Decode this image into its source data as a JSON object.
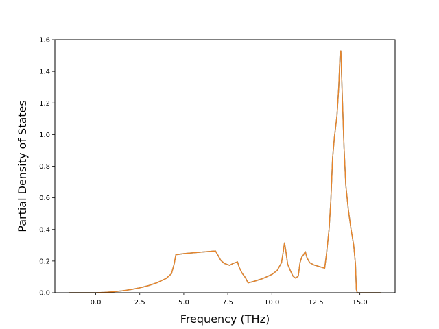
{
  "chart_data": {
    "type": "line",
    "title": "",
    "xlabel": "Frequency (THz)",
    "ylabel": "Partial Density of States",
    "xlim": [
      -2.32,
      17.0
    ],
    "ylim": [
      0,
      1.6
    ],
    "xticks": [
      0.0,
      2.5,
      5.0,
      7.5,
      10.0,
      12.5,
      15.0
    ],
    "xtick_labels": [
      "0.0",
      "2.5",
      "5.0",
      "7.5",
      "10.0",
      "12.5",
      "15.0"
    ],
    "yticks": [
      0.0,
      0.2,
      0.4,
      0.6,
      0.8,
      1.0,
      1.2,
      1.4,
      1.6
    ],
    "ytick_labels": [
      "0.0",
      "0.2",
      "0.4",
      "0.6",
      "0.8",
      "1.0",
      "1.2",
      "1.4",
      "1.6"
    ],
    "grid": false,
    "legend": "none",
    "series": [
      {
        "color": "#1f77b4",
        "points": [
          [
            -1.5,
            0
          ],
          [
            0,
            0
          ],
          [
            0.5,
            0.002
          ],
          [
            1,
            0.006
          ],
          [
            1.5,
            0.012
          ],
          [
            2,
            0.02
          ],
          [
            2.5,
            0.031
          ],
          [
            3,
            0.045
          ],
          [
            3.5,
            0.064
          ],
          [
            4,
            0.09
          ],
          [
            4.3,
            0.12
          ],
          [
            4.45,
            0.18
          ],
          [
            4.55,
            0.24
          ],
          [
            5,
            0.247
          ],
          [
            5.5,
            0.252
          ],
          [
            6,
            0.257
          ],
          [
            6.5,
            0.261
          ],
          [
            6.8,
            0.264
          ],
          [
            6.95,
            0.235
          ],
          [
            7.1,
            0.205
          ],
          [
            7.3,
            0.185
          ],
          [
            7.6,
            0.173
          ],
          [
            7.8,
            0.185
          ],
          [
            8.05,
            0.195
          ],
          [
            8.15,
            0.16
          ],
          [
            8.3,
            0.125
          ],
          [
            8.5,
            0.095
          ],
          [
            8.65,
            0.062
          ],
          [
            9,
            0.072
          ],
          [
            9.5,
            0.09
          ],
          [
            10,
            0.115
          ],
          [
            10.3,
            0.14
          ],
          [
            10.55,
            0.19
          ],
          [
            10.65,
            0.26
          ],
          [
            10.72,
            0.315
          ],
          [
            10.8,
            0.26
          ],
          [
            10.9,
            0.18
          ],
          [
            11.05,
            0.14
          ],
          [
            11.2,
            0.105
          ],
          [
            11.35,
            0.092
          ],
          [
            11.5,
            0.105
          ],
          [
            11.6,
            0.19
          ],
          [
            11.7,
            0.225
          ],
          [
            11.8,
            0.24
          ],
          [
            11.9,
            0.26
          ],
          [
            12.0,
            0.22
          ],
          [
            12.15,
            0.19
          ],
          [
            12.4,
            0.175
          ],
          [
            12.7,
            0.165
          ],
          [
            13.0,
            0.155
          ],
          [
            13.1,
            0.24
          ],
          [
            13.25,
            0.4
          ],
          [
            13.35,
            0.58
          ],
          [
            13.45,
            0.85
          ],
          [
            13.55,
            0.98
          ],
          [
            13.7,
            1.12
          ],
          [
            13.8,
            1.3
          ],
          [
            13.88,
            1.52
          ],
          [
            13.92,
            1.53
          ],
          [
            14.0,
            1.25
          ],
          [
            14.1,
            0.92
          ],
          [
            14.2,
            0.68
          ],
          [
            14.35,
            0.52
          ],
          [
            14.5,
            0.4
          ],
          [
            14.65,
            0.3
          ],
          [
            14.75,
            0.18
          ],
          [
            14.8,
            0.02
          ],
          [
            14.85,
            0
          ],
          [
            15.5,
            0
          ],
          [
            16.2,
            0
          ]
        ]
      },
      {
        "color": "#e8852a",
        "points": [
          [
            -1.5,
            0
          ],
          [
            0,
            0
          ],
          [
            0.5,
            0.002
          ],
          [
            1,
            0.006
          ],
          [
            1.5,
            0.012
          ],
          [
            2,
            0.02
          ],
          [
            2.5,
            0.031
          ],
          [
            3,
            0.045
          ],
          [
            3.5,
            0.064
          ],
          [
            4,
            0.09
          ],
          [
            4.3,
            0.12
          ],
          [
            4.45,
            0.18
          ],
          [
            4.55,
            0.24
          ],
          [
            5,
            0.247
          ],
          [
            5.5,
            0.252
          ],
          [
            6,
            0.257
          ],
          [
            6.5,
            0.261
          ],
          [
            6.8,
            0.264
          ],
          [
            6.95,
            0.235
          ],
          [
            7.1,
            0.205
          ],
          [
            7.3,
            0.185
          ],
          [
            7.6,
            0.173
          ],
          [
            7.8,
            0.185
          ],
          [
            8.05,
            0.195
          ],
          [
            8.15,
            0.16
          ],
          [
            8.3,
            0.125
          ],
          [
            8.5,
            0.095
          ],
          [
            8.65,
            0.062
          ],
          [
            9,
            0.072
          ],
          [
            9.5,
            0.09
          ],
          [
            10,
            0.115
          ],
          [
            10.3,
            0.14
          ],
          [
            10.55,
            0.19
          ],
          [
            10.65,
            0.26
          ],
          [
            10.72,
            0.315
          ],
          [
            10.8,
            0.26
          ],
          [
            10.9,
            0.18
          ],
          [
            11.05,
            0.14
          ],
          [
            11.2,
            0.105
          ],
          [
            11.35,
            0.092
          ],
          [
            11.5,
            0.105
          ],
          [
            11.6,
            0.19
          ],
          [
            11.7,
            0.225
          ],
          [
            11.8,
            0.24
          ],
          [
            11.9,
            0.26
          ],
          [
            12.0,
            0.22
          ],
          [
            12.15,
            0.19
          ],
          [
            12.4,
            0.175
          ],
          [
            12.7,
            0.165
          ],
          [
            13.0,
            0.155
          ],
          [
            13.1,
            0.24
          ],
          [
            13.25,
            0.4
          ],
          [
            13.35,
            0.58
          ],
          [
            13.45,
            0.85
          ],
          [
            13.55,
            0.98
          ],
          [
            13.7,
            1.12
          ],
          [
            13.8,
            1.3
          ],
          [
            13.88,
            1.52
          ],
          [
            13.92,
            1.53
          ],
          [
            14.0,
            1.25
          ],
          [
            14.1,
            0.92
          ],
          [
            14.2,
            0.68
          ],
          [
            14.35,
            0.52
          ],
          [
            14.5,
            0.4
          ],
          [
            14.65,
            0.3
          ],
          [
            14.75,
            0.18
          ],
          [
            14.8,
            0.02
          ],
          [
            14.85,
            0
          ],
          [
            15.5,
            0
          ],
          [
            16.2,
            0
          ]
        ]
      }
    ]
  }
}
